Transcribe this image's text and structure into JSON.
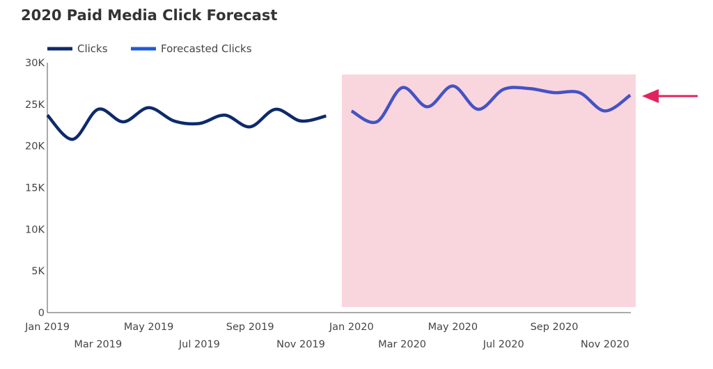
{
  "chart_data": {
    "type": "line",
    "title": "2020 Paid Media Click Forecast",
    "xlabel": "",
    "ylabel": "",
    "ylim": [
      0,
      30000
    ],
    "yticks": [
      "0",
      "5K",
      "10K",
      "15K",
      "20K",
      "25K",
      "30K"
    ],
    "ytick_values": [
      0,
      5000,
      10000,
      15000,
      20000,
      25000,
      30000
    ],
    "xtick_labels": [
      "Jan 2019",
      "Mar 2019",
      "May 2019",
      "Jul 2019",
      "Sep 2019",
      "Nov 2019",
      "Jan 2020",
      "Mar 2020",
      "May 2020",
      "Jul 2020",
      "Sep 2020",
      "Nov 2020"
    ],
    "grid": false,
    "legend_position": "top-left",
    "series": [
      {
        "name": "Clicks",
        "color": "#0d2a6b",
        "legend_color": "#0d2a6b",
        "x": [
          "2019-01",
          "2019-02",
          "2019-03",
          "2019-04",
          "2019-05",
          "2019-06",
          "2019-07",
          "2019-08",
          "2019-09",
          "2019-10",
          "2019-11",
          "2019-12"
        ],
        "values": [
          23700,
          20800,
          24400,
          22900,
          24600,
          23000,
          22700,
          23700,
          22300,
          24400,
          23000,
          23600
        ]
      },
      {
        "name": "Forecasted Clicks",
        "color": "#4453c4",
        "legend_color": "#1f5bd8",
        "x": [
          "2020-01",
          "2020-02",
          "2020-03",
          "2020-04",
          "2020-05",
          "2020-06",
          "2020-07",
          "2020-08",
          "2020-09",
          "2020-10",
          "2020-11",
          "2020-12"
        ],
        "values": [
          24200,
          22900,
          27000,
          24700,
          27200,
          24400,
          26800,
          26900,
          26400,
          26400,
          24200,
          26100
        ]
      }
    ],
    "highlight_color": "#f9d5de",
    "arrow_color": "#e0245e"
  }
}
